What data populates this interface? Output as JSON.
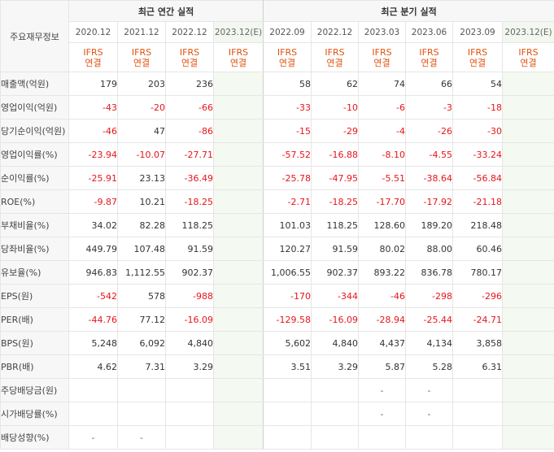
{
  "table": {
    "corner_label": "주요재무정보",
    "annual_header": "최근 연간 실적",
    "quarter_header": "최근 분기 실적",
    "periods": [
      "2020.12",
      "2021.12",
      "2022.12",
      "2023.12(E)",
      "2022.09",
      "2022.12",
      "2023.03",
      "2023.06",
      "2023.09",
      "2023.12(E)"
    ],
    "standard_top": "IFRS",
    "standard_bottom": "연결",
    "rows": [
      {
        "label": "매출액(억원)",
        "values": [
          "179",
          "203",
          "236",
          "",
          "58",
          "62",
          "74",
          "66",
          "54",
          ""
        ]
      },
      {
        "label": "영업이익(억원)",
        "values": [
          "-43",
          "-20",
          "-66",
          "",
          "-33",
          "-10",
          "-6",
          "-3",
          "-18",
          ""
        ]
      },
      {
        "label": "당기순이익(억원)",
        "values": [
          "-46",
          "47",
          "-86",
          "",
          "-15",
          "-29",
          "-4",
          "-26",
          "-30",
          ""
        ]
      },
      {
        "label": "영업이익률(%)",
        "values": [
          "-23.94",
          "-10.07",
          "-27.71",
          "",
          "-57.52",
          "-16.88",
          "-8.10",
          "-4.55",
          "-33.24",
          ""
        ]
      },
      {
        "label": "순이익률(%)",
        "values": [
          "-25.91",
          "23.13",
          "-36.49",
          "",
          "-25.78",
          "-47.95",
          "-5.51",
          "-38.64",
          "-56.84",
          ""
        ]
      },
      {
        "label": "ROE(%)",
        "values": [
          "-9.87",
          "10.21",
          "-18.25",
          "",
          "-2.71",
          "-18.25",
          "-17.70",
          "-17.92",
          "-21.18",
          ""
        ]
      },
      {
        "label": "부채비율(%)",
        "values": [
          "34.02",
          "82.28",
          "118.25",
          "",
          "101.03",
          "118.25",
          "128.60",
          "189.20",
          "218.48",
          ""
        ]
      },
      {
        "label": "당좌비율(%)",
        "values": [
          "449.79",
          "107.48",
          "91.59",
          "",
          "120.27",
          "91.59",
          "80.02",
          "88.00",
          "60.46",
          ""
        ]
      },
      {
        "label": "유보율(%)",
        "values": [
          "946.83",
          "1,112.55",
          "902.37",
          "",
          "1,006.55",
          "902.37",
          "893.22",
          "836.78",
          "780.17",
          ""
        ]
      },
      {
        "label": "EPS(원)",
        "values": [
          "-542",
          "578",
          "-988",
          "",
          "-170",
          "-344",
          "-46",
          "-298",
          "-296",
          ""
        ]
      },
      {
        "label": "PER(배)",
        "values": [
          "-44.76",
          "77.12",
          "-16.09",
          "",
          "-129.58",
          "-16.09",
          "-28.94",
          "-25.44",
          "-24.71",
          ""
        ]
      },
      {
        "label": "BPS(원)",
        "values": [
          "5,248",
          "6,092",
          "4,840",
          "",
          "5,602",
          "4,840",
          "4,437",
          "4,134",
          "3,858",
          ""
        ]
      },
      {
        "label": "PBR(배)",
        "values": [
          "4.62",
          "7.31",
          "3.29",
          "",
          "3.51",
          "3.29",
          "5.87",
          "5.28",
          "6.31",
          ""
        ]
      },
      {
        "label": "주당배당금(원)",
        "values": [
          "",
          "",
          "",
          "",
          "",
          "",
          "-",
          "-",
          "",
          ""
        ]
      },
      {
        "label": "시가배당률(%)",
        "values": [
          "",
          "",
          "",
          "",
          "",
          "",
          "-",
          "-",
          "",
          ""
        ]
      },
      {
        "label": "배당성향(%)",
        "values": [
          "-",
          "-",
          "",
          "",
          "",
          "",
          "",
          "",
          "",
          ""
        ]
      }
    ]
  },
  "colors": {
    "negative": "#e8141a",
    "standard": "#e0520f",
    "estimate_bg": "#f4f9f1"
  }
}
